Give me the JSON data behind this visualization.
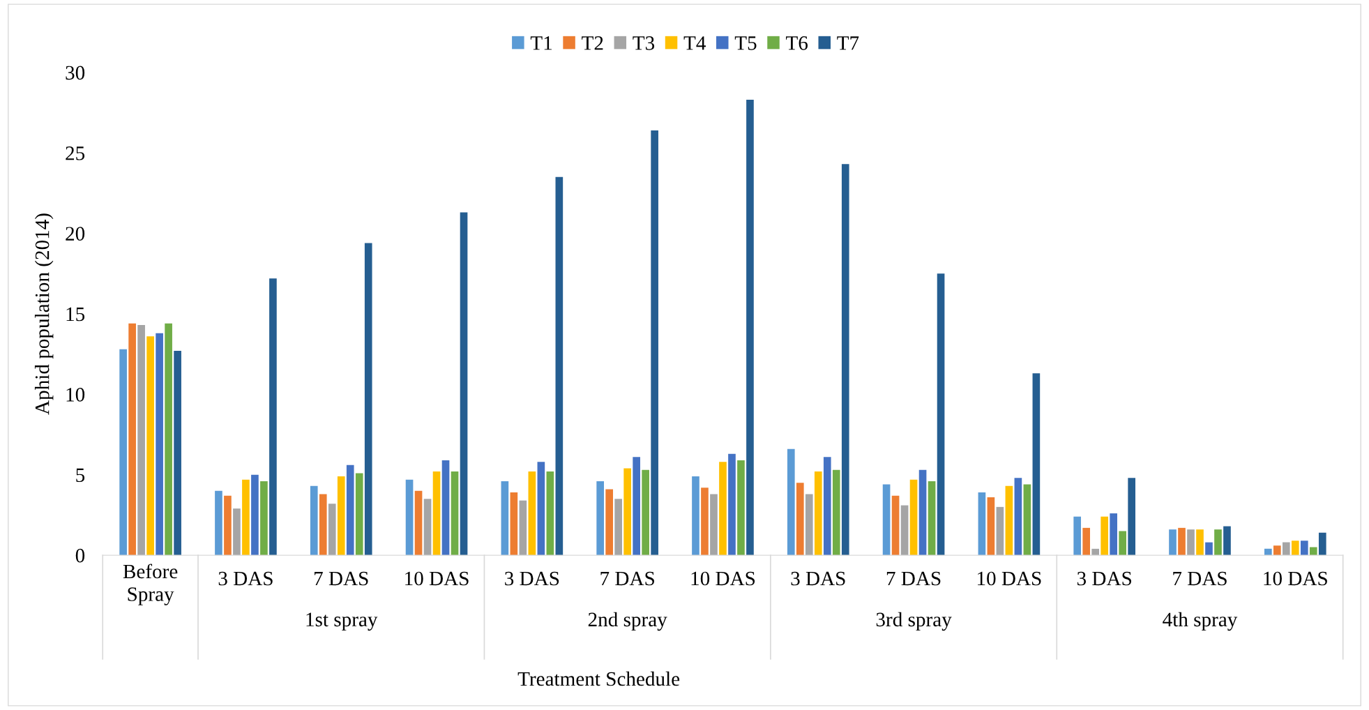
{
  "chart_data": {
    "type": "bar",
    "xlabel": "Treatment Schedule",
    "ylabel": "Aphid population (2014)",
    "categories": [
      "Before\nSpray",
      "3 DAS",
      "7 DAS",
      "10 DAS",
      "3 DAS",
      "7 DAS",
      "10 DAS",
      "3 DAS",
      "7 DAS",
      "10 DAS",
      "3 DAS",
      "7 DAS",
      "10 DAS"
    ],
    "annotations": [
      "1st spray",
      "2nd spray",
      "3rd spray",
      "4th spray"
    ],
    "series": [
      {
        "name": "T1",
        "color": "#5b9bd5",
        "values": [
          12.8,
          4.0,
          4.3,
          4.7,
          4.6,
          4.6,
          4.9,
          6.6,
          4.4,
          3.9,
          2.4,
          1.6,
          0.4
        ]
      },
      {
        "name": "T2",
        "color": "#ed7d31",
        "values": [
          14.4,
          3.7,
          3.8,
          4.0,
          3.9,
          4.1,
          4.2,
          4.5,
          3.7,
          3.6,
          1.7,
          1.7,
          0.6
        ]
      },
      {
        "name": "T3",
        "color": "#a5a5a5",
        "values": [
          14.3,
          2.9,
          3.2,
          3.5,
          3.4,
          3.5,
          3.8,
          3.8,
          3.1,
          3.0,
          0.4,
          1.6,
          0.8
        ]
      },
      {
        "name": "T4",
        "color": "#ffc000",
        "values": [
          13.6,
          4.7,
          4.9,
          5.2,
          5.2,
          5.4,
          5.8,
          5.2,
          4.7,
          4.3,
          2.4,
          1.6,
          0.9
        ]
      },
      {
        "name": "T5",
        "color": "#4472c4",
        "values": [
          13.8,
          5.0,
          5.6,
          5.9,
          5.8,
          6.1,
          6.3,
          6.1,
          5.3,
          4.8,
          2.6,
          0.8,
          0.9
        ]
      },
      {
        "name": "T6",
        "color": "#70ad47",
        "values": [
          14.4,
          4.6,
          5.1,
          5.2,
          5.2,
          5.3,
          5.9,
          5.3,
          4.6,
          4.4,
          1.5,
          1.6,
          0.5
        ]
      },
      {
        "name": "T7",
        "color": "#255e91",
        "values": [
          12.7,
          17.2,
          19.4,
          21.3,
          23.5,
          26.4,
          28.3,
          24.3,
          17.5,
          11.3,
          4.8,
          1.8,
          1.4
        ]
      }
    ],
    "ylim": [
      0,
      30
    ],
    "yticks": [
      0,
      5,
      10,
      15,
      20,
      25,
      30
    ],
    "grid": false,
    "legend": "top"
  }
}
